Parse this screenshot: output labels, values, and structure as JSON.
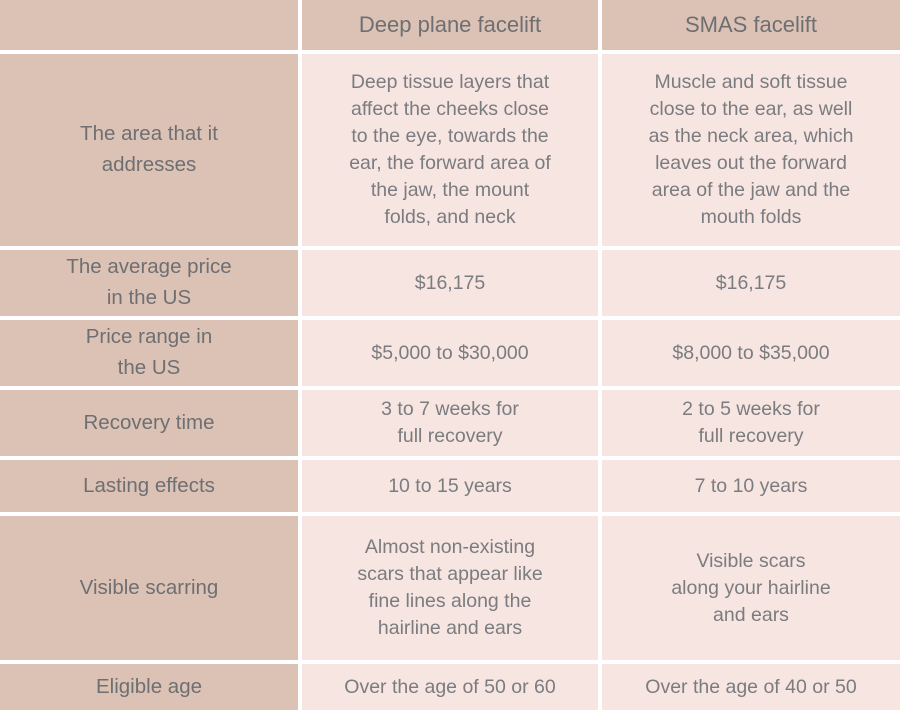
{
  "colors": {
    "header_bg": "#dcc2b5",
    "label_bg": "#dcc2b5",
    "cell_bg": "#f6e5e0",
    "divider": "#ffffff",
    "header_text": "#6e6f72",
    "label_text": "#6e6f72",
    "cell_text": "#7b7c80"
  },
  "chart_data": {
    "type": "table",
    "columns": [
      "Deep plane facelift",
      "SMAS facelift"
    ],
    "rows": [
      {
        "label": "The area that it\naddresses",
        "values": [
          "Deep tissue layers that\naffect the cheeks close\nto the eye, towards the\near, the forward area of\nthe jaw, the mount\nfolds, and neck",
          "Muscle and soft tissue\nclose to the ear, as well\nas the neck area, which\nleaves out the forward\narea of the jaw and the\nmouth folds"
        ]
      },
      {
        "label": "The average price\nin the US",
        "values": [
          "$16,175",
          "$16,175"
        ]
      },
      {
        "label": "Price range in\nthe US",
        "values": [
          "$5,000 to $30,000",
          "$8,000 to $35,000"
        ]
      },
      {
        "label": "Recovery time",
        "values": [
          "3 to 7 weeks for\nfull recovery",
          "2 to 5 weeks for\nfull recovery"
        ]
      },
      {
        "label": "Lasting effects",
        "values": [
          "10 to 15 years",
          "7 to 10 years"
        ]
      },
      {
        "label": "Visible scarring",
        "values": [
          "Almost non-existing\nscars that appear like\nfine lines along the\nhairline and ears",
          "Visible scars\nalong your hairline\nand ears"
        ]
      },
      {
        "label": "Eligible age",
        "values": [
          "Over the age of 50 or 60",
          "Over the age of 40 or 50"
        ]
      }
    ]
  }
}
